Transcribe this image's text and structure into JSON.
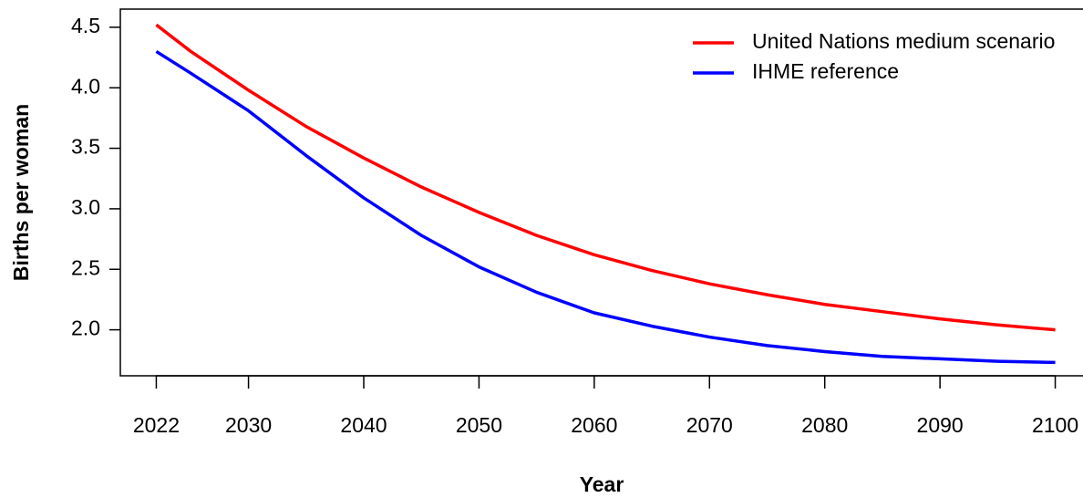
{
  "chart_data": {
    "type": "line",
    "x_label": "Year",
    "y_label": "Births per woman",
    "x": [
      2022,
      2025,
      2030,
      2035,
      2040,
      2045,
      2050,
      2055,
      2060,
      2065,
      2070,
      2075,
      2080,
      2085,
      2090,
      2095,
      2100
    ],
    "series": [
      {
        "name": "United Nations medium scenario",
        "color": "#ff0000",
        "values": [
          4.52,
          4.3,
          3.98,
          3.68,
          3.42,
          3.18,
          2.97,
          2.78,
          2.62,
          2.49,
          2.38,
          2.29,
          2.21,
          2.15,
          2.09,
          2.04,
          2.0
        ]
      },
      {
        "name": "IHME reference",
        "color": "#0000ff",
        "values": [
          4.3,
          4.12,
          3.81,
          3.44,
          3.09,
          2.78,
          2.52,
          2.31,
          2.14,
          2.03,
          1.94,
          1.87,
          1.82,
          1.78,
          1.76,
          1.74,
          1.73
        ]
      }
    ],
    "xlim": [
      2018.88,
      2103.12
    ],
    "ylim": [
      1.62,
      4.65
    ],
    "xticks": [
      2022,
      2030,
      2040,
      2050,
      2060,
      2070,
      2080,
      2090,
      2100
    ],
    "yticks": [
      {
        "value": 2,
        "label": "2.0"
      },
      2.5,
      {
        "value": 3,
        "label": "3.0"
      },
      3.5,
      {
        "value": 4,
        "label": "4.0"
      },
      4.5
    ],
    "legend": "topright",
    "grid": false
  }
}
